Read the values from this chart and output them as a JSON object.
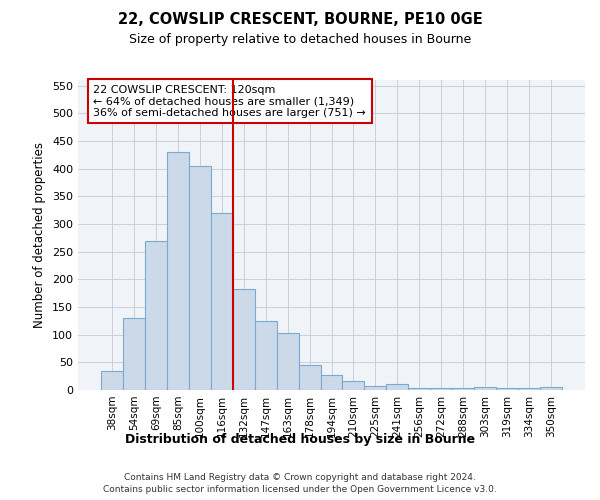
{
  "title1": "22, COWSLIP CRESCENT, BOURNE, PE10 0GE",
  "title2": "Size of property relative to detached houses in Bourne",
  "xlabel": "Distribution of detached houses by size in Bourne",
  "ylabel": "Number of detached properties",
  "footer1": "Contains HM Land Registry data © Crown copyright and database right 2024.",
  "footer2": "Contains public sector information licensed under the Open Government Licence v3.0.",
  "bin_labels": [
    "38sqm",
    "54sqm",
    "69sqm",
    "85sqm",
    "100sqm",
    "116sqm",
    "132sqm",
    "147sqm",
    "163sqm",
    "178sqm",
    "194sqm",
    "210sqm",
    "225sqm",
    "241sqm",
    "256sqm",
    "272sqm",
    "288sqm",
    "303sqm",
    "319sqm",
    "334sqm",
    "350sqm"
  ],
  "bar_values": [
    35,
    130,
    270,
    430,
    405,
    320,
    183,
    125,
    103,
    45,
    28,
    17,
    8,
    10,
    3,
    3,
    3,
    5,
    3,
    3,
    5
  ],
  "bar_color": "#ccd9e8",
  "bar_edge_color": "#7aaad0",
  "vline_x_index": 5.5,
  "vline_color": "#cc0000",
  "annotation_line1": "22 COWSLIP CRESCENT: 120sqm",
  "annotation_line2": "← 64% of detached houses are smaller (1,349)",
  "annotation_line3": "36% of semi-detached houses are larger (751) →",
  "annotation_box_color": "#cc0000",
  "ylim": [
    0,
    560
  ],
  "yticks": [
    0,
    50,
    100,
    150,
    200,
    250,
    300,
    350,
    400,
    450,
    500,
    550
  ],
  "plot_bg_color": "#f0f4f8",
  "fig_bg_color": "#ffffff",
  "grid_color": "#c8d0dc"
}
